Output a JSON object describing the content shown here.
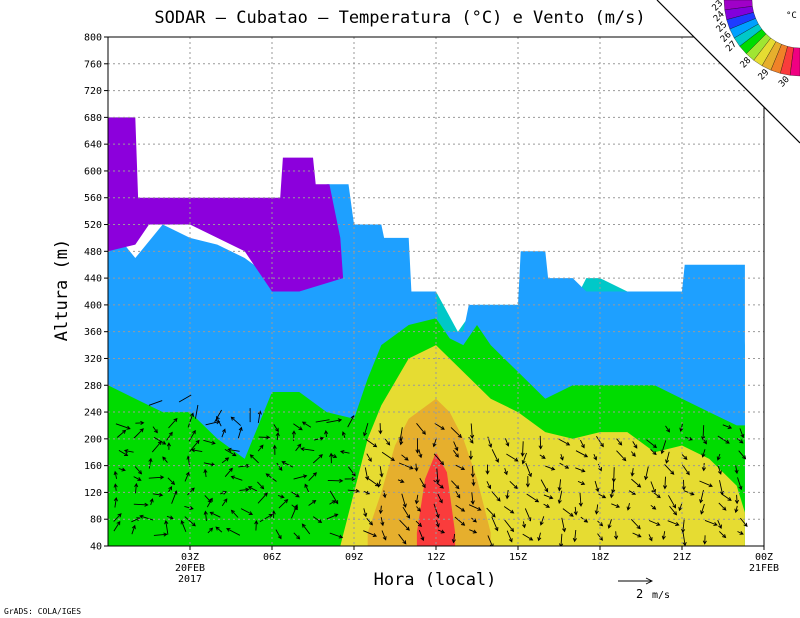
{
  "chart_data": {
    "type": "contour",
    "title": "SODAR – Cubatao – Temperatura (°C) e Vento (m/s)",
    "xlabel": "Hora (local)",
    "ylabel": "Altura (m)",
    "ylim": [
      40,
      800
    ],
    "y_ticks": [
      40,
      80,
      120,
      160,
      200,
      240,
      280,
      320,
      360,
      400,
      440,
      480,
      520,
      560,
      600,
      640,
      680,
      720,
      760,
      800
    ],
    "x_range_hours": [
      0,
      24
    ],
    "x_ticks": [
      {
        "hour": 3,
        "label": "03Z",
        "sub1": "20FEB",
        "sub2": "2017"
      },
      {
        "hour": 6,
        "label": "06Z"
      },
      {
        "hour": 9,
        "label": "09Z"
      },
      {
        "hour": 12,
        "label": "12Z"
      },
      {
        "hour": 15,
        "label": "15Z"
      },
      {
        "hour": 18,
        "label": "18Z"
      },
      {
        "hour": 21,
        "label": "21Z"
      },
      {
        "hour": 24,
        "label": "00Z",
        "sub1": "21FEB"
      }
    ],
    "colorbar": {
      "unit": "°C",
      "levels": [
        {
          "label": "23",
          "color": "#a000c8"
        },
        {
          "label": "24",
          "color": "#8200dc"
        },
        {
          "label": "25",
          "color": "#1e3cff"
        },
        {
          "label": "26",
          "color": "#00a0ff"
        },
        {
          "label": "27",
          "color": "#00c8c8"
        },
        {
          "label": "",
          "color": "#00dc00"
        },
        {
          "label": "28",
          "color": "#a0e632"
        },
        {
          "label": "",
          "color": "#e6dc32"
        },
        {
          "label": "29",
          "color": "#e6af2d"
        },
        {
          "label": "",
          "color": "#f08228"
        },
        {
          "label": "30",
          "color": "#fa3c3c"
        },
        {
          "label": "",
          "color": "#f00082"
        }
      ]
    },
    "bands": [
      {
        "name": "27",
        "color": "#00c8c8",
        "top": [
          [
            0,
            400
          ],
          [
            1,
            360
          ],
          [
            2,
            360
          ],
          [
            3,
            380
          ],
          [
            4,
            360
          ],
          [
            5,
            340
          ],
          [
            6,
            290
          ],
          [
            7,
            290
          ],
          [
            8,
            330
          ],
          [
            9,
            360
          ],
          [
            9.8,
            380
          ],
          [
            10.5,
            380
          ],
          [
            11,
            420
          ],
          [
            12,
            420
          ],
          [
            12.8,
            360
          ],
          [
            13.5,
            400
          ],
          [
            14,
            400
          ],
          [
            15,
            400
          ],
          [
            16,
            400
          ],
          [
            16.5,
            400
          ],
          [
            17,
            400
          ],
          [
            17.5,
            440
          ],
          [
            18,
            440
          ],
          [
            19,
            420
          ],
          [
            20,
            420
          ],
          [
            21,
            420
          ],
          [
            21.5,
            420
          ],
          [
            22,
            440
          ],
          [
            23,
            460
          ],
          [
            23.3,
            340
          ]
        ]
      },
      {
        "name": "26",
        "color": "#1ea0ff",
        "top": [
          [
            0,
            520
          ],
          [
            1,
            470
          ],
          [
            2,
            520
          ],
          [
            3,
            500
          ],
          [
            4,
            490
          ],
          [
            5,
            470
          ],
          [
            6,
            440
          ],
          [
            7,
            440
          ],
          [
            7.5,
            440
          ],
          [
            8,
            580
          ],
          [
            8.8,
            580
          ],
          [
            9,
            520
          ],
          [
            10,
            520
          ],
          [
            10.1,
            500
          ],
          [
            11,
            500
          ],
          [
            11.1,
            420
          ],
          [
            12,
            420
          ],
          [
            12.1,
            360
          ],
          [
            13,
            360
          ],
          [
            13.2,
            400
          ],
          [
            15,
            400
          ],
          [
            15.1,
            480
          ],
          [
            16,
            480
          ],
          [
            16.1,
            440
          ],
          [
            17,
            440
          ],
          [
            17.5,
            420
          ],
          [
            21,
            420
          ],
          [
            21.1,
            460
          ],
          [
            23.3,
            460
          ]
        ]
      },
      {
        "name": "24",
        "color": "#8c00dc",
        "top": [
          [
            0,
            680
          ],
          [
            1,
            680
          ],
          [
            1.1,
            560
          ],
          [
            6.3,
            560
          ],
          [
            6.4,
            620
          ],
          [
            7.5,
            620
          ],
          [
            7.6,
            580
          ],
          [
            8.1,
            580
          ],
          [
            8.5,
            500
          ],
          [
            8.6,
            440
          ],
          [
            7,
            420
          ],
          [
            6,
            420
          ],
          [
            5,
            480
          ],
          [
            3,
            520
          ],
          [
            1.5,
            520
          ],
          [
            1,
            490
          ],
          [
            0,
            480
          ]
        ]
      },
      {
        "name": "28",
        "color": "#00dc00",
        "top": [
          [
            0,
            280
          ],
          [
            1,
            260
          ],
          [
            2,
            240
          ],
          [
            3,
            240
          ],
          [
            4,
            200
          ],
          [
            5,
            170
          ],
          [
            6,
            270
          ],
          [
            7,
            270
          ],
          [
            8,
            240
          ],
          [
            9,
            230
          ],
          [
            9.5,
            290
          ],
          [
            10,
            340
          ],
          [
            11,
            370
          ],
          [
            12,
            380
          ],
          [
            12.5,
            350
          ],
          [
            13,
            340
          ],
          [
            13.5,
            370
          ],
          [
            14,
            340
          ],
          [
            15,
            300
          ],
          [
            16,
            260
          ],
          [
            17,
            280
          ],
          [
            18,
            280
          ],
          [
            19,
            280
          ],
          [
            20,
            280
          ],
          [
            21,
            260
          ],
          [
            22,
            240
          ],
          [
            23,
            220
          ],
          [
            23.3,
            220
          ]
        ]
      },
      {
        "name": "28b",
        "color": "#e6dc32",
        "top": [
          [
            8.5,
            40
          ],
          [
            9,
            120
          ],
          [
            9.5,
            200
          ],
          [
            10,
            250
          ],
          [
            11,
            320
          ],
          [
            12,
            340
          ],
          [
            13,
            300
          ],
          [
            14,
            260
          ],
          [
            15,
            240
          ],
          [
            16,
            210
          ],
          [
            17,
            200
          ],
          [
            18,
            210
          ],
          [
            19,
            210
          ],
          [
            20,
            180
          ],
          [
            21,
            190
          ],
          [
            22,
            170
          ],
          [
            23,
            130
          ],
          [
            23.3,
            90
          ]
        ]
      },
      {
        "name": "29",
        "color": "#e6af2d",
        "top": [
          [
            9.5,
            60
          ],
          [
            10,
            120
          ],
          [
            10.5,
            190
          ],
          [
            11,
            230
          ],
          [
            12,
            260
          ],
          [
            12.5,
            240
          ],
          [
            13,
            200
          ],
          [
            13.5,
            140
          ],
          [
            14,
            60
          ]
        ]
      },
      {
        "name": "30",
        "color": "#fa3c3c",
        "top": [
          [
            11.3,
            60
          ],
          [
            11.6,
            140
          ],
          [
            12,
            180
          ],
          [
            12.4,
            150
          ],
          [
            12.7,
            60
          ]
        ]
      }
    ],
    "wind_arrow_scale": {
      "label": "2",
      "unit": "m/s"
    },
    "footer": "GrADS: COLA/IGES"
  }
}
